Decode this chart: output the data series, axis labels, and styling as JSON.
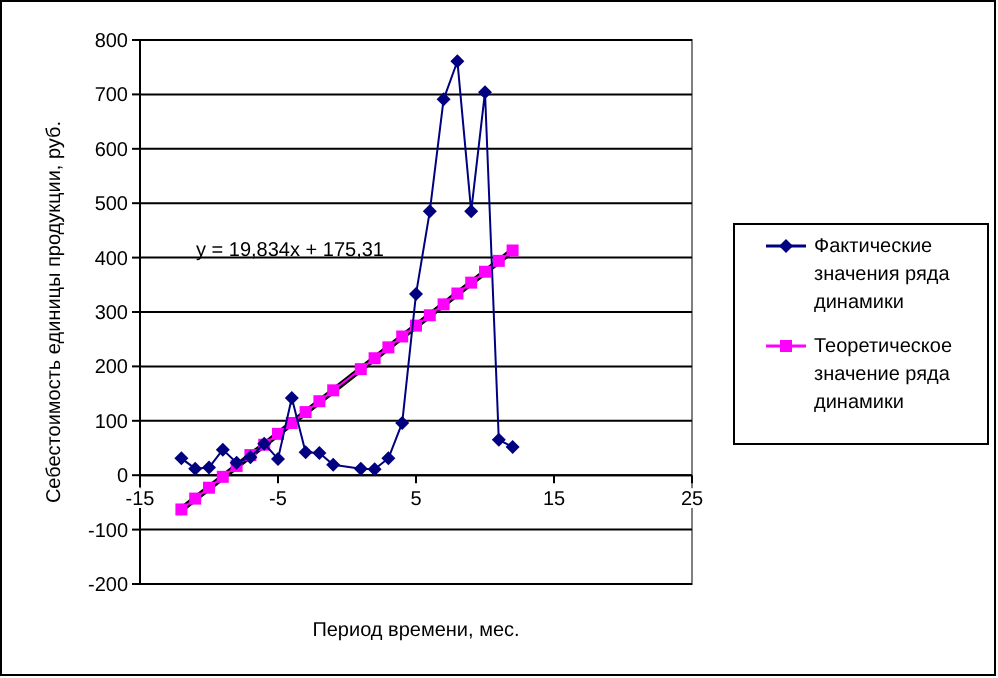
{
  "chart_data": {
    "type": "line",
    "xlabel": "Период времени, мес.",
    "ylabel": "Себестоимость единицы продукции, руб.",
    "annotations": [
      "y = 19,834x + 175,31"
    ],
    "xlim": [
      -15,
      25
    ],
    "xticks": [
      -15,
      -5,
      5,
      15,
      25
    ],
    "ylim": [
      -200,
      800
    ],
    "yticks": [
      -200,
      -100,
      0,
      100,
      200,
      300,
      400,
      500,
      600,
      700,
      800
    ],
    "grid": "y",
    "legend": "right",
    "series": [
      {
        "name": "Фактические значения ряда динамики",
        "color": "#000080",
        "marker": "diamond",
        "x": [
          -12,
          -11,
          -10,
          -9,
          -8,
          -7,
          -6,
          -5,
          -4,
          -3,
          -2,
          -1,
          1,
          2,
          3,
          4,
          5,
          6,
          7,
          8,
          9,
          10,
          11,
          12
        ],
        "values": [
          31,
          12,
          14,
          47,
          23,
          33,
          58,
          30,
          142,
          42,
          41,
          19,
          12,
          11,
          31,
          96,
          333,
          485,
          691,
          761,
          485,
          704,
          65,
          52
        ]
      },
      {
        "name": "Теоретическое значение ряда динамики",
        "color": "#ff00ff",
        "marker": "square",
        "x": [
          -12,
          -11,
          -10,
          -9,
          -8,
          -7,
          -6,
          -5,
          -4,
          -3,
          -2,
          -1,
          1,
          2,
          3,
          4,
          5,
          6,
          7,
          8,
          9,
          10,
          11,
          12
        ],
        "values": [
          -63,
          -43,
          -23,
          -3,
          17,
          37,
          56,
          76,
          96,
          116,
          136,
          156,
          195,
          215,
          235,
          255,
          275,
          294,
          314,
          334,
          354,
          374,
          394,
          413
        ]
      },
      {
        "color": "#000000",
        "x": [
          -12,
          12
        ],
        "values": [
          -63,
          413
        ]
      }
    ]
  }
}
